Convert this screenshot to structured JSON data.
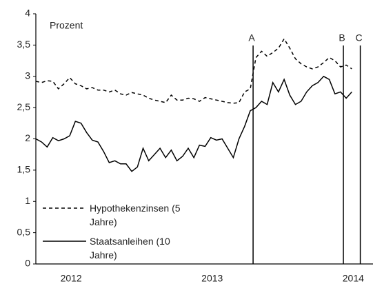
{
  "chart_data": {
    "type": "line",
    "y_label": "Prozent",
    "x": [
      2011.75,
      2011.79,
      2011.83,
      2011.87,
      2011.91,
      2011.95,
      2011.99,
      2012.03,
      2012.07,
      2012.11,
      2012.15,
      2012.19,
      2012.23,
      2012.27,
      2012.31,
      2012.35,
      2012.39,
      2012.43,
      2012.47,
      2012.51,
      2012.55,
      2012.59,
      2012.63,
      2012.67,
      2012.71,
      2012.75,
      2012.79,
      2012.83,
      2012.87,
      2012.91,
      2012.95,
      2012.99,
      2013.03,
      2013.07,
      2013.11,
      2013.15,
      2013.19,
      2013.23,
      2013.27,
      2013.31,
      2013.35,
      2013.39,
      2013.43,
      2013.47,
      2013.51,
      2013.55,
      2013.59,
      2013.63,
      2013.67,
      2013.71,
      2013.75,
      2013.79,
      2013.83,
      2013.87,
      2013.91,
      2013.95,
      2013.99
    ],
    "series": [
      {
        "name": "Hypothekenzinsen (5 Jahre)",
        "color": "#000000",
        "style": "dashed",
        "values": [
          2.92,
          2.9,
          2.93,
          2.92,
          2.8,
          2.88,
          2.98,
          2.88,
          2.85,
          2.8,
          2.82,
          2.78,
          2.78,
          2.75,
          2.78,
          2.72,
          2.7,
          2.74,
          2.72,
          2.7,
          2.65,
          2.62,
          2.6,
          2.58,
          2.7,
          2.62,
          2.62,
          2.65,
          2.64,
          2.6,
          2.66,
          2.64,
          2.62,
          2.6,
          2.58,
          2.57,
          2.58,
          2.75,
          2.8,
          3.3,
          3.4,
          3.32,
          3.38,
          3.45,
          3.6,
          3.45,
          3.28,
          3.2,
          3.15,
          3.12,
          3.15,
          3.22,
          3.3,
          3.25,
          3.15,
          3.18,
          3.12
        ]
      },
      {
        "name": "Staatsanleihen (10 Jahre)",
        "color": "#000000",
        "style": "solid",
        "values": [
          2.0,
          1.95,
          1.87,
          2.02,
          1.97,
          2.0,
          2.05,
          2.28,
          2.25,
          2.1,
          1.98,
          1.95,
          1.8,
          1.62,
          1.65,
          1.6,
          1.6,
          1.48,
          1.55,
          1.85,
          1.65,
          1.75,
          1.85,
          1.7,
          1.82,
          1.65,
          1.72,
          1.85,
          1.7,
          1.9,
          1.88,
          2.02,
          1.98,
          2.0,
          1.85,
          1.7,
          2.0,
          2.2,
          2.45,
          2.5,
          2.6,
          2.55,
          2.9,
          2.75,
          2.95,
          2.7,
          2.55,
          2.6,
          2.75,
          2.85,
          2.9,
          3.0,
          2.95,
          2.72,
          2.75,
          2.65,
          2.75
        ]
      }
    ],
    "annotations": [
      {
        "label": "A",
        "x": 2013.29
      },
      {
        "label": "B",
        "x": 2013.93
      },
      {
        "label": "C",
        "x": 2014.05
      }
    ],
    "xlim": [
      2011.75,
      2014.14
    ],
    "xticks": [
      2012,
      2013,
      2014
    ],
    "ylim": [
      0,
      4
    ],
    "yticks": [
      0,
      {
        "value": 0.5,
        "label": "0,5"
      },
      1,
      {
        "value": 1.5,
        "label": "1,5"
      },
      2,
      {
        "value": 2.5,
        "label": "2,5"
      },
      3,
      {
        "value": 3.5,
        "label": "3,5"
      },
      4
    ],
    "grid": false
  }
}
